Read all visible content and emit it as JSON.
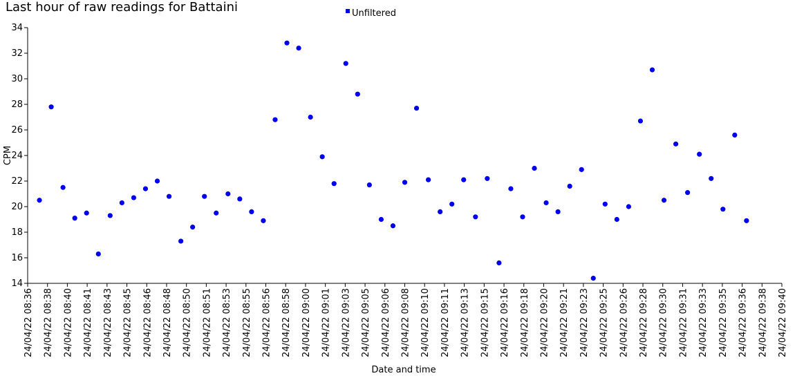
{
  "chart_data": {
    "type": "scatter",
    "title": "Last hour of raw readings for Battaini",
    "xlabel": "Date and time",
    "ylabel": "CPM",
    "ylim": [
      14,
      34
    ],
    "yticks": [
      14,
      16,
      18,
      20,
      22,
      24,
      26,
      28,
      30,
      32,
      34
    ],
    "xlim": [
      "24/04/22 08:36",
      "24/04/22 09:40"
    ],
    "xtick_labels": [
      "24/04/22 08:36",
      "24/04/22 08:38",
      "24/04/22 08:40",
      "24/04/22 08:41",
      "24/04/22 08:43",
      "24/04/22 08:45",
      "24/04/22 08:46",
      "24/04/22 08:48",
      "24/04/22 08:50",
      "24/04/22 08:51",
      "24/04/22 08:53",
      "24/04/22 08:55",
      "24/04/22 08:56",
      "24/04/22 08:58",
      "24/04/22 09:00",
      "24/04/22 09:01",
      "24/04/22 09:03",
      "24/04/22 09:05",
      "24/04/22 09:06",
      "24/04/22 09:08",
      "24/04/22 09:10",
      "24/04/22 09:11",
      "24/04/22 09:13",
      "24/04/22 09:15",
      "24/04/22 09:16",
      "24/04/22 09:18",
      "24/04/22 09:20",
      "24/04/22 09:21",
      "24/04/22 09:23",
      "24/04/22 09:25",
      "24/04/22 09:26",
      "24/04/22 09:28",
      "24/04/22 09:30",
      "24/04/22 09:31",
      "24/04/22 09:33",
      "24/04/22 09:35",
      "24/04/22 09:36",
      "24/04/22 09:38",
      "24/04/22 09:40"
    ],
    "legend": {
      "position": "top-center"
    },
    "grid": false,
    "series": [
      {
        "name": "Unfiltered",
        "color": "#0000ee",
        "points": [
          {
            "x": "24/04/22 08:37",
            "y": 20.5
          },
          {
            "x": "24/04/22 08:38",
            "y": 27.8
          },
          {
            "x": "24/04/22 08:39",
            "y": 21.5
          },
          {
            "x": "24/04/22 08:40",
            "y": 19.1
          },
          {
            "x": "24/04/22 08:41",
            "y": 19.5
          },
          {
            "x": "24/04/22 08:42",
            "y": 16.3
          },
          {
            "x": "24/04/22 08:43",
            "y": 19.3
          },
          {
            "x": "24/04/22 08:44",
            "y": 20.3
          },
          {
            "x": "24/04/22 08:45",
            "y": 20.7
          },
          {
            "x": "24/04/22 08:46",
            "y": 21.4
          },
          {
            "x": "24/04/22 08:47",
            "y": 22.0
          },
          {
            "x": "24/04/22 08:48",
            "y": 20.8
          },
          {
            "x": "24/04/22 08:49",
            "y": 17.3
          },
          {
            "x": "24/04/22 08:50",
            "y": 18.4
          },
          {
            "x": "24/04/22 08:51",
            "y": 20.8
          },
          {
            "x": "24/04/22 08:52",
            "y": 19.5
          },
          {
            "x": "24/04/22 08:53",
            "y": 21.0
          },
          {
            "x": "24/04/22 08:54",
            "y": 20.6
          },
          {
            "x": "24/04/22 08:55",
            "y": 19.6
          },
          {
            "x": "24/04/22 08:56",
            "y": 18.9
          },
          {
            "x": "24/04/22 08:57",
            "y": 26.8
          },
          {
            "x": "24/04/22 08:58",
            "y": 32.8
          },
          {
            "x": "24/04/22 08:59",
            "y": 32.4
          },
          {
            "x": "24/04/22 09:00",
            "y": 27.0
          },
          {
            "x": "24/04/22 09:01",
            "y": 23.9
          },
          {
            "x": "24/04/22 09:02",
            "y": 21.8
          },
          {
            "x": "24/04/22 09:03",
            "y": 31.2
          },
          {
            "x": "24/04/22 09:04",
            "y": 28.8
          },
          {
            "x": "24/04/22 09:05",
            "y": 21.7
          },
          {
            "x": "24/04/22 09:06",
            "y": 19.0
          },
          {
            "x": "24/04/22 09:07",
            "y": 18.5
          },
          {
            "x": "24/04/22 09:08",
            "y": 21.9
          },
          {
            "x": "24/04/22 09:09",
            "y": 27.7
          },
          {
            "x": "24/04/22 09:10",
            "y": 22.1
          },
          {
            "x": "24/04/22 09:11",
            "y": 19.6
          },
          {
            "x": "24/04/22 09:12",
            "y": 20.2
          },
          {
            "x": "24/04/22 09:13",
            "y": 22.1
          },
          {
            "x": "24/04/22 09:14",
            "y": 19.2
          },
          {
            "x": "24/04/22 09:15",
            "y": 22.2
          },
          {
            "x": "24/04/22 09:16",
            "y": 15.6
          },
          {
            "x": "24/04/22 09:17",
            "y": 21.4
          },
          {
            "x": "24/04/22 09:18",
            "y": 19.2
          },
          {
            "x": "24/04/22 09:19",
            "y": 23.0
          },
          {
            "x": "24/04/22 09:20",
            "y": 20.3
          },
          {
            "x": "24/04/22 09:21",
            "y": 19.6
          },
          {
            "x": "24/04/22 09:22",
            "y": 21.6
          },
          {
            "x": "24/04/22 09:23",
            "y": 22.9
          },
          {
            "x": "24/04/22 09:24",
            "y": 14.4
          },
          {
            "x": "24/04/22 09:25",
            "y": 20.2
          },
          {
            "x": "24/04/22 09:26",
            "y": 19.0
          },
          {
            "x": "24/04/22 09:27",
            "y": 20.0
          },
          {
            "x": "24/04/22 09:28",
            "y": 26.7
          },
          {
            "x": "24/04/22 09:29",
            "y": 30.7
          },
          {
            "x": "24/04/22 09:30",
            "y": 20.5
          },
          {
            "x": "24/04/22 09:31",
            "y": 24.9
          },
          {
            "x": "24/04/22 09:32",
            "y": 21.1
          },
          {
            "x": "24/04/22 09:33",
            "y": 24.1
          },
          {
            "x": "24/04/22 09:34",
            "y": 22.2
          },
          {
            "x": "24/04/22 09:35",
            "y": 19.8
          },
          {
            "x": "24/04/22 09:36",
            "y": 25.6
          },
          {
            "x": "24/04/22 09:37",
            "y": 18.9
          }
        ]
      }
    ]
  }
}
